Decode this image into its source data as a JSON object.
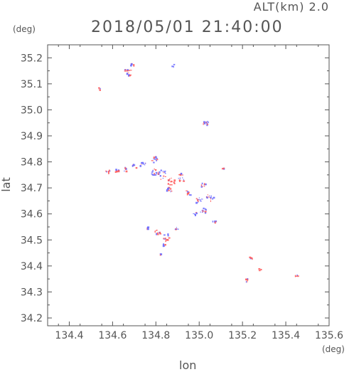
{
  "header": {
    "alt_label": "ALT(km) 2.0",
    "datetime": "2018/05/01 21:40:00"
  },
  "axes": {
    "y_unit": "(deg)",
    "x_unit": "(deg)",
    "y_label": "lat",
    "x_label": "lon"
  },
  "colors": {
    "red": "#ff5555",
    "blue": "#6666ff",
    "axis": "#555555"
  },
  "chart_data": {
    "type": "scatter",
    "xlim": [
      134.3,
      135.6
    ],
    "ylim": [
      34.17,
      35.25
    ],
    "x_ticks": [
      134.4,
      134.6,
      134.8,
      135.0,
      135.2,
      135.4,
      135.6
    ],
    "x_tick_labels": [
      "134.4",
      "134.6",
      "134.8",
      "135.0",
      "135.2",
      "135.4",
      "135.6"
    ],
    "y_ticks": [
      34.2,
      34.3,
      34.4,
      34.5,
      34.6,
      34.7,
      34.8,
      34.9,
      35.0,
      35.1,
      35.2
    ],
    "y_tick_labels": [
      "34.2",
      "34.3",
      "34.4",
      "34.5",
      "34.6",
      "34.7",
      "34.8",
      "34.9",
      "35.0",
      "35.1",
      "35.2"
    ],
    "grid": false,
    "clusters": [
      {
        "lon": 134.69,
        "lat": 35.17,
        "r": 0.01
      },
      {
        "lon": 134.68,
        "lat": 35.14,
        "r": 0.015
      },
      {
        "lon": 134.66,
        "lat": 35.15,
        "r": 0.01
      },
      {
        "lon": 134.54,
        "lat": 35.08,
        "r": 0.006
      },
      {
        "lon": 134.88,
        "lat": 35.17,
        "r": 0.006
      },
      {
        "lon": 135.04,
        "lat": 34.95,
        "r": 0.01
      },
      {
        "lon": 135.02,
        "lat": 34.95,
        "r": 0.006
      },
      {
        "lon": 134.58,
        "lat": 34.765,
        "r": 0.01
      },
      {
        "lon": 134.62,
        "lat": 34.765,
        "r": 0.01
      },
      {
        "lon": 134.66,
        "lat": 34.77,
        "r": 0.01
      },
      {
        "lon": 134.7,
        "lat": 34.78,
        "r": 0.012
      },
      {
        "lon": 134.74,
        "lat": 34.79,
        "r": 0.014
      },
      {
        "lon": 134.79,
        "lat": 34.81,
        "r": 0.016
      },
      {
        "lon": 134.79,
        "lat": 34.76,
        "r": 0.016
      },
      {
        "lon": 134.83,
        "lat": 34.75,
        "r": 0.022
      },
      {
        "lon": 134.87,
        "lat": 34.72,
        "r": 0.02
      },
      {
        "lon": 134.92,
        "lat": 34.74,
        "r": 0.02
      },
      {
        "lon": 134.86,
        "lat": 34.69,
        "r": 0.014
      },
      {
        "lon": 134.95,
        "lat": 34.68,
        "r": 0.016
      },
      {
        "lon": 135.02,
        "lat": 34.71,
        "r": 0.012
      },
      {
        "lon": 135.05,
        "lat": 34.66,
        "r": 0.018
      },
      {
        "lon": 135.0,
        "lat": 34.65,
        "r": 0.016
      },
      {
        "lon": 135.02,
        "lat": 34.61,
        "r": 0.016
      },
      {
        "lon": 134.98,
        "lat": 34.6,
        "r": 0.01
      },
      {
        "lon": 135.07,
        "lat": 34.57,
        "r": 0.008
      },
      {
        "lon": 134.76,
        "lat": 34.545,
        "r": 0.008
      },
      {
        "lon": 134.81,
        "lat": 34.53,
        "r": 0.014
      },
      {
        "lon": 134.85,
        "lat": 34.51,
        "r": 0.016
      },
      {
        "lon": 134.9,
        "lat": 34.54,
        "r": 0.01
      },
      {
        "lon": 134.84,
        "lat": 34.48,
        "r": 0.008
      },
      {
        "lon": 134.82,
        "lat": 34.445,
        "r": 0.006
      },
      {
        "lon": 135.11,
        "lat": 34.775,
        "r": 0.004
      },
      {
        "lon": 135.24,
        "lat": 34.43,
        "r": 0.008
      },
      {
        "lon": 135.28,
        "lat": 34.385,
        "r": 0.006
      },
      {
        "lon": 135.22,
        "lat": 34.345,
        "r": 0.008
      },
      {
        "lon": 135.45,
        "lat": 34.36,
        "r": 0.006
      }
    ]
  }
}
